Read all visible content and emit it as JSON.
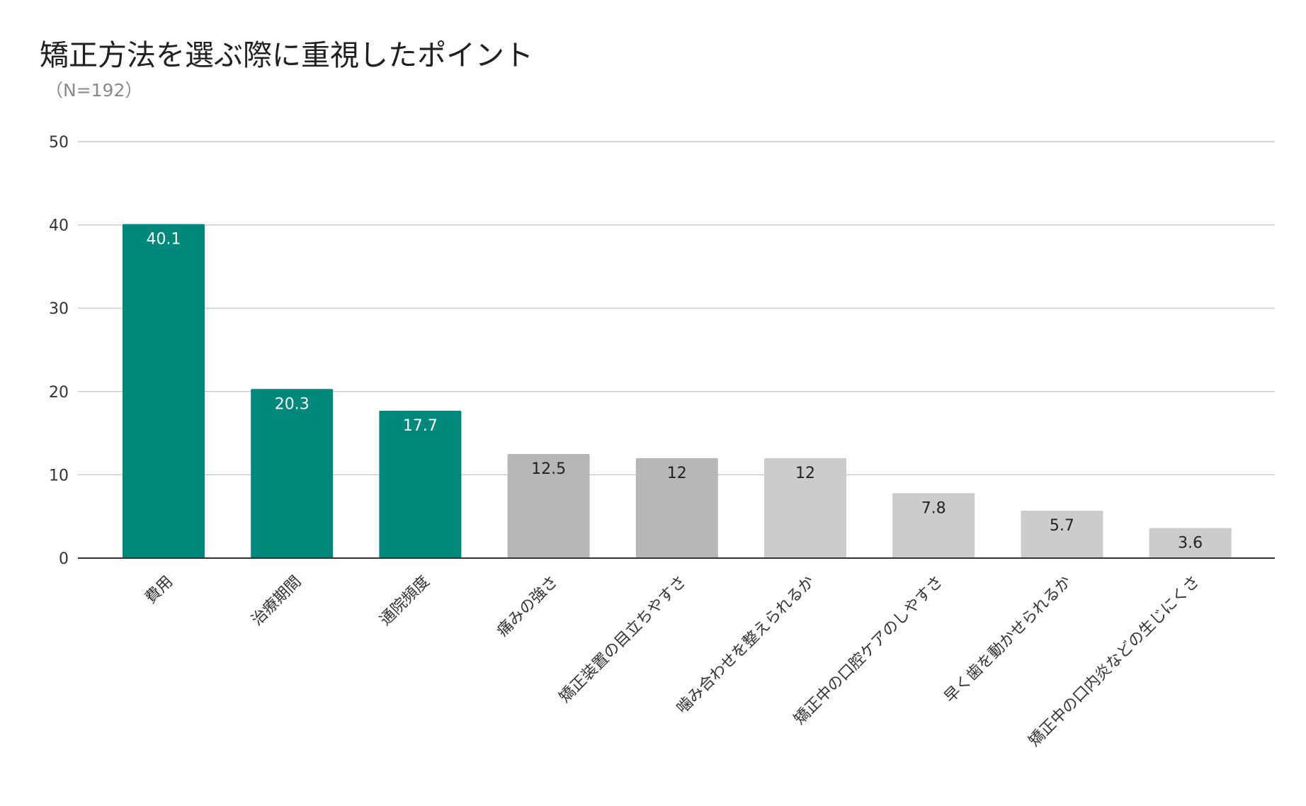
{
  "chart_data": {
    "type": "bar",
    "title": "矯正方法を選ぶ際に重視したポイント",
    "subtitle": "（N=192）",
    "xlabel": "",
    "ylabel": "",
    "ylim": [
      0,
      50
    ],
    "yticks": [
      0,
      10,
      20,
      30,
      40,
      50
    ],
    "grid": true,
    "legend": "none",
    "categories": [
      "費用",
      "治療期間",
      "通院頻度",
      "痛みの強さ",
      "矯正装置の目立ちやすさ",
      "噛み合わせを整えられるか",
      "矯正中の口腔ケアのしやすさ",
      "早く歯を動かせられるか",
      "矯正中の口内炎などの生じにくさ"
    ],
    "values": [
      40.1,
      20.3,
      17.7,
      12.5,
      12,
      12,
      7.8,
      5.7,
      3.6
    ],
    "data_labels": [
      "40.1",
      "20.3",
      "17.7",
      "12.5",
      "12",
      "12",
      "7.8",
      "5.7",
      "3.6"
    ],
    "bar_colors": [
      "#00897b",
      "#00897b",
      "#00897b",
      "#b7b7b7",
      "#b7b7b7",
      "#cccccc",
      "#cccccc",
      "#cccccc",
      "#cccccc"
    ],
    "label_colors": [
      "#ffffff",
      "#ffffff",
      "#ffffff",
      "#222222",
      "#222222",
      "#222222",
      "#222222",
      "#222222",
      "#222222"
    ],
    "colors": {
      "accent": "#00897b",
      "gray_dark": "#b7b7b7",
      "gray_light": "#cccccc",
      "gridline": "#cccccc",
      "axis": "#333333",
      "tick_text": "#333333"
    }
  }
}
